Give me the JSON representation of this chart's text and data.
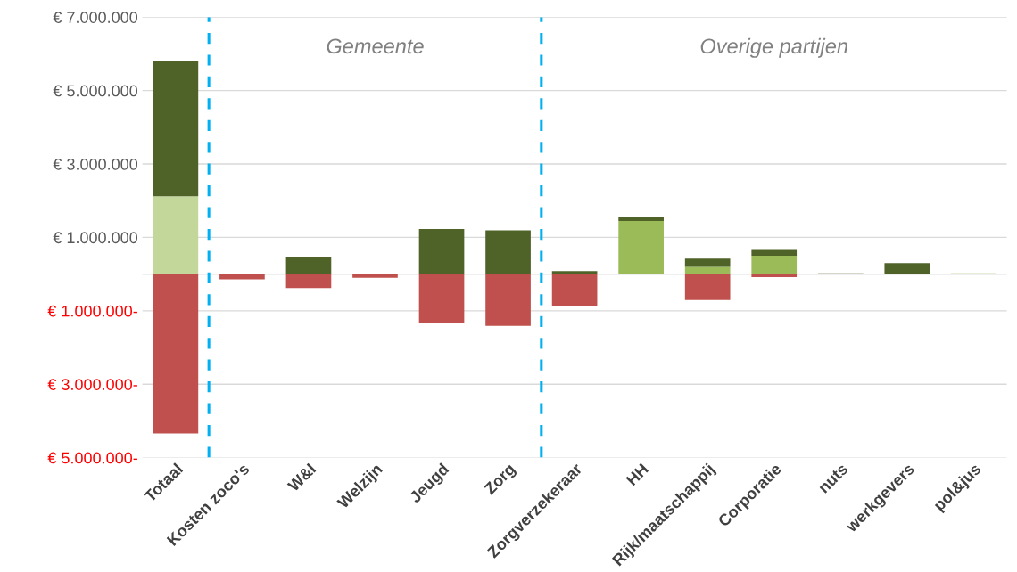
{
  "chart_data": {
    "type": "bar",
    "stacked": true,
    "categories": [
      "Totaal",
      "Kosten zoco's",
      "W&I",
      "Welzijn",
      "Jeugd",
      "Zorg",
      "Zorgverzekeraar",
      "HH",
      "Rijk/maatschappij",
      "Corporatie",
      "nuts",
      "werkgevers",
      "pol&jus"
    ],
    "series": [
      {
        "color": "#c4d79b",
        "values": [
          2120000,
          null,
          null,
          null,
          null,
          null,
          null,
          null,
          null,
          null,
          null,
          null,
          null
        ]
      },
      {
        "color": "#9bbb59",
        "values": [
          null,
          null,
          null,
          null,
          null,
          null,
          null,
          1450000,
          200000,
          500000,
          null,
          null,
          20000
        ]
      },
      {
        "color": "#4f6228",
        "values": [
          3680000,
          null,
          460000,
          null,
          1230000,
          1190000,
          80000,
          100000,
          220000,
          160000,
          20000,
          300000,
          null
        ]
      },
      {
        "color": "#c0504d",
        "values": [
          -4340000,
          -140000,
          -380000,
          -100000,
          -1330000,
          -1410000,
          -870000,
          null,
          -710000,
          -80000,
          null,
          null,
          null
        ]
      }
    ],
    "ylim": [
      -5000000,
      7000000
    ],
    "yticks": [
      {
        "value": 7000000,
        "label": "€ 7.000.000"
      },
      {
        "value": 5000000,
        "label": "€ 5.000.000"
      },
      {
        "value": 3000000,
        "label": "€ 3.000.000"
      },
      {
        "value": 1000000,
        "label": "€ 1.000.000"
      },
      {
        "value": 0,
        "label": null
      },
      {
        "value": -1000000,
        "label": "€ 1.000.000-"
      },
      {
        "value": -3000000,
        "label": "€ 3.000.000-"
      },
      {
        "value": -5000000,
        "label": "€ 5.000.000-"
      }
    ],
    "grid": "y",
    "annotations": [
      "Gemeente",
      "Overige partijen"
    ]
  }
}
